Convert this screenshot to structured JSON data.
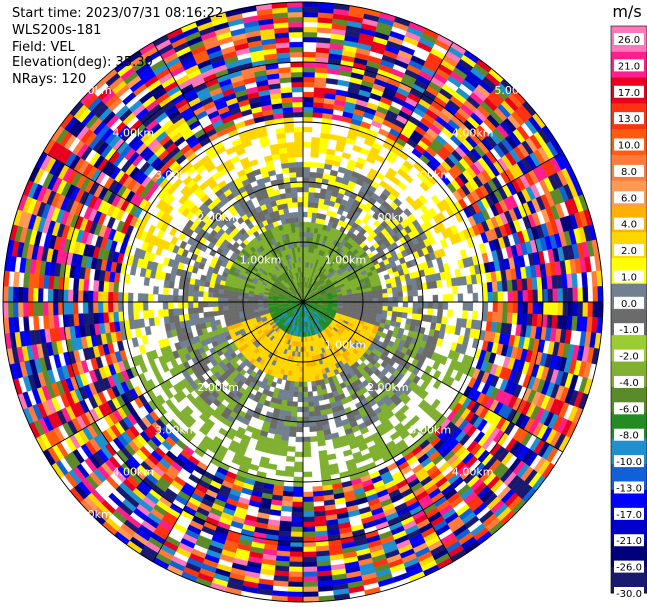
{
  "header": {
    "start_time": "Start time: 2023/07/31 08:16:22",
    "station": "WLS200s-181",
    "field": "Field: VEL",
    "elevation": "Elevation(deg): 35.30",
    "nrays": "NRays: 120"
  },
  "chart_data": {
    "type": "ppi",
    "title": "",
    "field": "VEL",
    "units": "m/s",
    "elevation_deg": 35.3,
    "n_rays": 120,
    "max_range_km": 5.0,
    "range_rings_km": [
      1,
      2,
      3,
      4,
      5
    ],
    "radial_spokes_deg": [
      0,
      30,
      60,
      90,
      120,
      150,
      180,
      210,
      240,
      270,
      300,
      330
    ],
    "range_labels": [
      {
        "text": "1.00km",
        "az": 315,
        "r": 1.0
      },
      {
        "text": "1.00km",
        "az": 45,
        "r": 1.0
      },
      {
        "text": "1.00km",
        "az": 135,
        "r": 1.0
      },
      {
        "text": "2.00km",
        "az": 315,
        "r": 2.0
      },
      {
        "text": "2.00km",
        "az": 45,
        "r": 2.0
      },
      {
        "text": "2.00km",
        "az": 135,
        "r": 2.0
      },
      {
        "text": "2.00km",
        "az": 225,
        "r": 2.0
      },
      {
        "text": "3.00km",
        "az": 315,
        "r": 3.0
      },
      {
        "text": "3.00km",
        "az": 45,
        "r": 3.0
      },
      {
        "text": "3.00km",
        "az": 135,
        "r": 3.0
      },
      {
        "text": "3.00km",
        "az": 225,
        "r": 3.0
      },
      {
        "text": "4.00km",
        "az": 315,
        "r": 4.0
      },
      {
        "text": "4.00km",
        "az": 45,
        "r": 4.0
      },
      {
        "text": "4.00km",
        "az": 135,
        "r": 4.0
      },
      {
        "text": "4.00km",
        "az": 225,
        "r": 4.0
      },
      {
        "text": "5.00km",
        "az": 315,
        "r": 5.0
      },
      {
        "text": "5.00km",
        "az": 45,
        "r": 5.0
      },
      {
        "text": "5.00km",
        "az": 225,
        "r": 5.0
      }
    ],
    "colorbar": {
      "title": "m/s",
      "min": -30.0,
      "max": 30.0,
      "ticks": [
        "26.0",
        "21.0",
        "17.0",
        "13.0",
        "10.0",
        "8.0",
        "6.0",
        "4.0",
        "2.0",
        "1.0",
        "0.0",
        "-1.0",
        "-2.0",
        "-4.0",
        "-6.0",
        "-8.0",
        "-10.0",
        "-13.0",
        "-17.0",
        "-21.0",
        "-26.0",
        "-30.0"
      ],
      "bands": [
        {
          "lo": 26,
          "hi": 30,
          "color": "#ff77bb"
        },
        {
          "lo": 21,
          "hi": 26,
          "color": "#ff1e8c"
        },
        {
          "lo": 17,
          "hi": 21,
          "color": "#e8001e"
        },
        {
          "lo": 13,
          "hi": 17,
          "color": "#ff3210"
        },
        {
          "lo": 10,
          "hi": 13,
          "color": "#ff5a10"
        },
        {
          "lo": 8,
          "hi": 10,
          "color": "#ff7b3c"
        },
        {
          "lo": 6,
          "hi": 8,
          "color": "#ff9a54"
        },
        {
          "lo": 4,
          "hi": 6,
          "color": "#ffb000"
        },
        {
          "lo": 2,
          "hi": 4,
          "color": "#ffd700"
        },
        {
          "lo": 1,
          "hi": 2,
          "color": "#ffff00"
        },
        {
          "lo": 0,
          "hi": 1,
          "color": "#708090"
        },
        {
          "lo": -1,
          "hi": 0,
          "color": "#6b6b6b"
        },
        {
          "lo": -2,
          "hi": -1,
          "color": "#9acd32"
        },
        {
          "lo": -4,
          "hi": -2,
          "color": "#7fb030"
        },
        {
          "lo": -6,
          "hi": -4,
          "color": "#5a8a2a"
        },
        {
          "lo": -8,
          "hi": -6,
          "color": "#228b22"
        },
        {
          "lo": -10,
          "hi": -8,
          "color": "#1e90d0"
        },
        {
          "lo": -13,
          "hi": -10,
          "color": "#1060d8"
        },
        {
          "lo": -17,
          "hi": -13,
          "color": "#0000ff"
        },
        {
          "lo": -21,
          "hi": -17,
          "color": "#0000cc"
        },
        {
          "lo": -26,
          "hi": -21,
          "color": "#00007a"
        },
        {
          "lo": -30,
          "hi": -26,
          "color": "#191970"
        }
      ]
    }
  }
}
